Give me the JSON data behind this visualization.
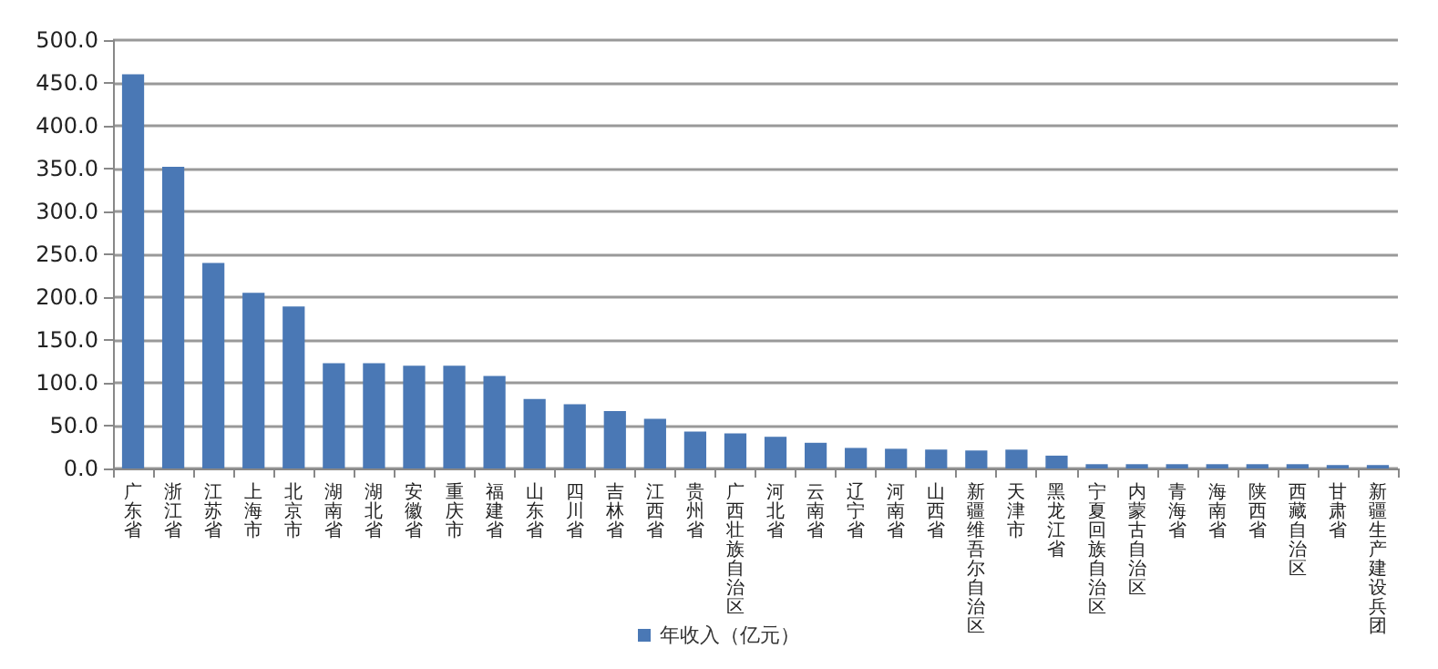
{
  "chart_data": {
    "type": "bar",
    "categories": [
      "广东省",
      "浙江省",
      "江苏省",
      "上海市",
      "北京市",
      "湖南省",
      "湖北省",
      "安徽省",
      "重庆市",
      "福建省",
      "山东省",
      "四川省",
      "吉林省",
      "江西省",
      "贵州省",
      "广西壮族自治区",
      "河北省",
      "云南省",
      "辽宁省",
      "河南省",
      "山西省",
      "新疆维吾尔自治区",
      "天津市",
      "黑龙江省",
      "宁夏回族自治区",
      "内蒙古自治区",
      "青海省",
      "海南省",
      "陕西省",
      "西藏自治区",
      "甘肃省",
      "新疆生产建设兵团"
    ],
    "series": [
      {
        "name": "年收入（亿元）",
        "color": "#4a78b5",
        "values": [
          460,
          352,
          240,
          205,
          189,
          123,
          123,
          120,
          120,
          108,
          81,
          75,
          67,
          58,
          43,
          41,
          37,
          30,
          24,
          23,
          22,
          21,
          22,
          15,
          5,
          5,
          5,
          5,
          5,
          5,
          4,
          4
        ]
      }
    ],
    "ylim": [
      0,
      500
    ],
    "yticks": [
      {
        "value": 0,
        "label": "0.0"
      },
      {
        "value": 50,
        "label": "50.0"
      },
      {
        "value": 100,
        "label": "100.0"
      },
      {
        "value": 150,
        "label": "150.0"
      },
      {
        "value": 200,
        "label": "200.0"
      },
      {
        "value": 250,
        "label": "250.0"
      },
      {
        "value": 300,
        "label": "300.0"
      },
      {
        "value": 350,
        "label": "350.0"
      },
      {
        "value": 400,
        "label": "400.0"
      },
      {
        "value": 450,
        "label": "450.0"
      },
      {
        "value": 500,
        "label": "500.0"
      }
    ],
    "grid": "y",
    "legend": "bottom"
  }
}
